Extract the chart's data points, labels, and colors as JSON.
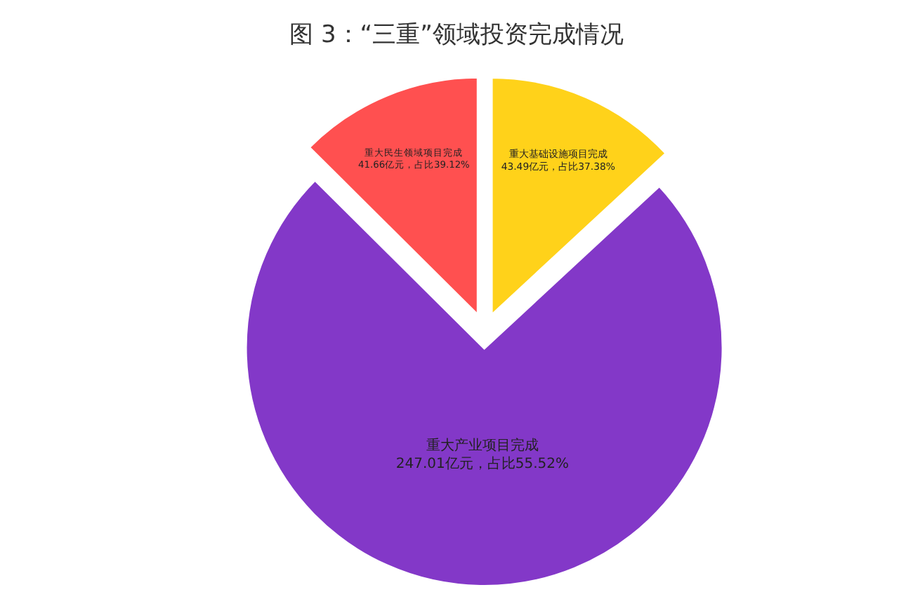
{
  "chart_data": {
    "type": "pie",
    "title": "图 3：“三重”领域投资完成情况",
    "categories": [
      "重大基础设施项目完成",
      "重大产业项目完成",
      "重大民生领域项目完成"
    ],
    "values": [
      43.49,
      247.01,
      41.66
    ],
    "value_labels": [
      "43.49亿元，占比37.38%",
      "247.01亿元，占比55.52%",
      "41.66亿元，占比39.12%"
    ],
    "colors": [
      "#ffd21a",
      "#8338c8",
      "#ff5050"
    ]
  }
}
